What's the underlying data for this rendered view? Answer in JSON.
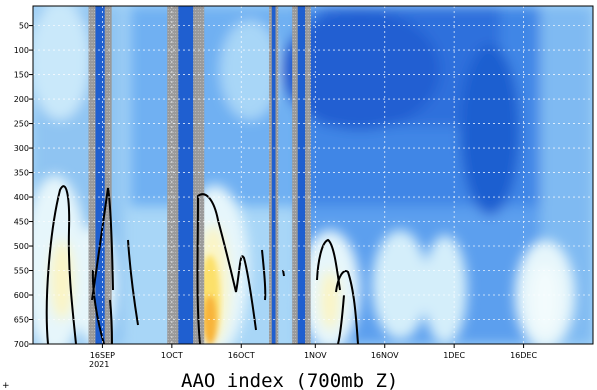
{
  "chart_data": {
    "type": "heatmap",
    "title": "AAO index (700mb Z)",
    "year_label": "2021",
    "x": {
      "start": "2021-09-01",
      "end": "2021-12-31",
      "ticks": [
        {
          "date": "2021-09-16",
          "label": "16SEP"
        },
        {
          "date": "2021-10-01",
          "label": "1OCT"
        },
        {
          "date": "2021-10-16",
          "label": "16OCT"
        },
        {
          "date": "2021-11-01",
          "label": "1NOV"
        },
        {
          "date": "2021-11-16",
          "label": "16NOV"
        },
        {
          "date": "2021-12-01",
          "label": "1DEC"
        },
        {
          "date": "2021-12-16",
          "label": "16DEC"
        }
      ]
    },
    "y": {
      "scale": "pressure",
      "range": [
        700,
        10
      ],
      "ticks": [
        50,
        100,
        150,
        200,
        250,
        300,
        350,
        400,
        450,
        500,
        550,
        600,
        650,
        700
      ]
    },
    "grid": true,
    "missing_bands": [
      {
        "start": "2021-09-13",
        "end": "2021-09-18"
      },
      {
        "start": "2021-09-30",
        "end": "2021-10-08"
      },
      {
        "start": "2021-10-22",
        "end": "2021-10-24"
      },
      {
        "start": "2021-10-27",
        "end": "2021-10-31"
      }
    ],
    "colors": {
      "strong_negative": "#1f5fd0",
      "negative": "#3f86e6",
      "moderate_negative": "#6fb0f2",
      "weak_negative": "#a8d6f7",
      "near_zero": "#e6f6fb",
      "weak_positive": "#fbf5c4",
      "positive": "#fce06a",
      "strong_positive": "#f8b43a",
      "missing": "#9a9a9a",
      "contour": "#000000"
    }
  }
}
